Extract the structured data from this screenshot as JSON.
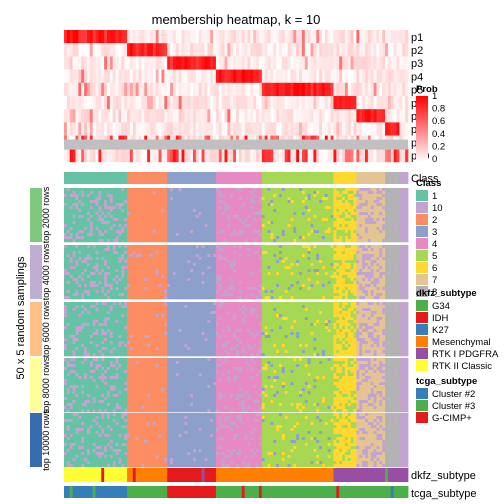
{
  "chart_data": {
    "type": "heatmap",
    "title": "membership heatmap, k = 10",
    "y_axis_label": "50 x 5 random samplings",
    "membership_rows": [
      "p1",
      "p2",
      "p3",
      "p4",
      "p5",
      "p6",
      "p7",
      "p8",
      "p9",
      "p10"
    ],
    "class_row_label": "Class",
    "annotation_rows": [
      "dkfz_subtype",
      "tcga_subtype"
    ],
    "top_n_groups": [
      "top 2000 rows",
      "top 4000 rows",
      "top 6000 rows",
      "top 8000 rows",
      "top 10000 rows"
    ],
    "top_n_colors": [
      "#7fc97f",
      "#beaed4",
      "#fdc086",
      "#ffff99",
      "#386cb0"
    ],
    "columns_per_class_fraction": [
      0.11,
      0.08,
      0.1,
      0.08,
      0.13,
      0.04,
      0.045,
      0.035,
      0.08,
      0.3
    ],
    "prob_legend": {
      "title": "Prob",
      "ticks": [
        "1",
        "0.8",
        "0.6",
        "0.4",
        "0.2",
        "0"
      ],
      "color_low": "#ffffff",
      "color_high": "#ff0000"
    },
    "class_legend": {
      "title": "Class",
      "labels": [
        "1",
        "10",
        "2",
        "3",
        "4",
        "5",
        "6",
        "7",
        "8"
      ],
      "colors": [
        "#66c2a5",
        "#c2a5cf",
        "#fc8d62",
        "#8da0cb",
        "#e78ac3",
        "#a6d854",
        "#ffd92f",
        "#e5c494",
        "#b3b3b3"
      ]
    },
    "dkfz_legend": {
      "title": "dkfz_subtype",
      "labels": [
        "G34",
        "IDH",
        "K27",
        "Mesenchymal",
        "RTK I PDGFRA",
        "RTK II Classic"
      ],
      "colors": [
        "#4daf4a",
        "#e41a1c",
        "#377eb8",
        "#ff7f00",
        "#984ea3",
        "#ffff33"
      ]
    },
    "tcga_legend": {
      "title": "tcga_subtype",
      "labels": [
        "Cluster #2",
        "Cluster #3",
        "G-CIMP+"
      ],
      "colors": [
        "#377eb8",
        "#4daf4a",
        "#e41a1c"
      ]
    }
  }
}
